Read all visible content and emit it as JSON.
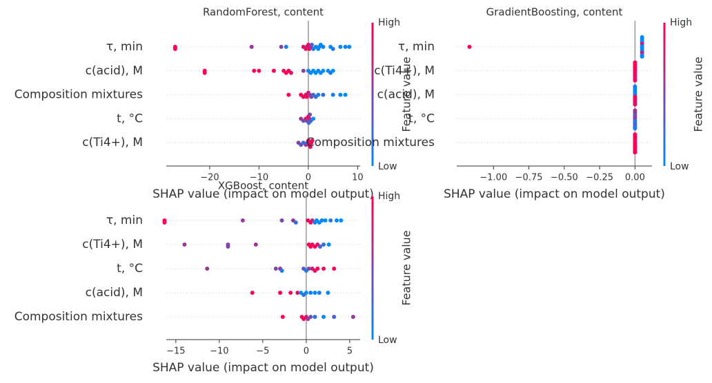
{
  "chart_data": [
    {
      "type": "beeswarm",
      "title": "RandomForest, content",
      "xlabel": "SHAP value (impact on model output)",
      "categories": [
        "τ, min",
        "c(acid), M",
        "Composition mixtures",
        "t, °C",
        "c(Ti4+), M"
      ],
      "shap_values": [
        [
          -27,
          -27,
          -11.5,
          -5.5,
          -4.5,
          -1,
          -0.5,
          -0.3,
          0,
          0.2,
          0.5,
          0.7,
          1,
          1.5,
          2,
          2.2,
          2.5,
          3,
          4.5,
          5,
          6.5,
          7.5,
          8.3
        ],
        [
          -21,
          -21,
          -11,
          -10,
          -7,
          -5,
          -4.5,
          -4,
          -3.5,
          -1,
          0,
          0.5,
          1,
          1.5,
          2,
          2.5,
          3,
          4,
          4.5,
          5
        ],
        [
          -4,
          -1.5,
          -1,
          -0.5,
          -0.3,
          0,
          0.3,
          0.6,
          1,
          1.5,
          2,
          3,
          5,
          6.5,
          7.5
        ],
        [
          -1.5,
          -1,
          -0.5,
          -0.3,
          0,
          0.1,
          0.2,
          0.3,
          0.5,
          1
        ],
        [
          -2,
          -1.5,
          -1,
          -0.5,
          -0.2,
          0,
          0.2,
          0.4,
          0.6,
          0.8
        ]
      ],
      "feature_values": [
        [
          1,
          1,
          0.6,
          0.5,
          0.1,
          0.9,
          0.95,
          0.8,
          0.9,
          0.9,
          0.7,
          0.3,
          0.1,
          0.05,
          0,
          0,
          0,
          0.05,
          0,
          0.1,
          0,
          0.05,
          0.05
        ],
        [
          1,
          1,
          1,
          1,
          1,
          0.9,
          1,
          1,
          0.9,
          0.5,
          0.1,
          0,
          0,
          0,
          0.05,
          0,
          0,
          0,
          0.1,
          0
        ],
        [
          1,
          1,
          0.9,
          1,
          0.95,
          0.8,
          0.6,
          0.5,
          0.3,
          0.2,
          0.1,
          0.2,
          0.1,
          0,
          0
        ],
        [
          0.6,
          0.4,
          0.9,
          0.5,
          1,
          0.2,
          0.8,
          0.5,
          0.3,
          0
        ],
        [
          0.5,
          0.4,
          0.2,
          0.6,
          0.3,
          1,
          1,
          0.9,
          0.95,
          0.9
        ]
      ],
      "xlim": [
        -28.8,
        10.5
      ],
      "xticks": [
        {
          "value": -20,
          "label": "−20"
        },
        {
          "value": -10,
          "label": "−10"
        },
        0,
        10
      ],
      "colorbar": {
        "label": "Feature value",
        "high": "High",
        "low": "Low",
        "colors": [
          "#008bfb",
          "#ff0052"
        ]
      }
    },
    {
      "type": "beeswarm",
      "title": "GradientBoosting, content",
      "xlabel": "SHAP value (impact on model output)",
      "categories": [
        "τ, min",
        "c(Ti4+), M",
        "c(acid), M",
        "t, °C",
        "Composition mixtures"
      ],
      "shap_values": [
        [
          -1.17,
          0.05,
          0.05,
          0.05,
          0.05,
          0.05,
          0.05,
          0.05,
          0.05,
          0.05,
          0.05,
          0.05,
          0.05
        ],
        [
          0,
          0,
          0,
          0,
          0,
          0,
          0,
          0,
          0,
          0
        ],
        [
          0,
          0,
          0,
          0,
          0,
          0,
          0,
          0,
          0,
          0
        ],
        [
          0,
          0,
          0,
          0,
          0,
          0,
          0,
          0,
          0,
          0
        ],
        [
          0,
          0,
          0,
          0,
          0,
          0,
          0,
          0,
          0,
          0
        ]
      ],
      "feature_values": [
        [
          1,
          0,
          0,
          0,
          0.1,
          1,
          1,
          0,
          0,
          0,
          0.9,
          0,
          0
        ],
        [
          1,
          0.9,
          1,
          0.95,
          1,
          0.9,
          1,
          0.85,
          1,
          0.95
        ],
        [
          0,
          1,
          0.1,
          0.9,
          0.05,
          1,
          0,
          0.8,
          0.1,
          0.9
        ],
        [
          0.5,
          0.2,
          0.6,
          0.1,
          0.4,
          0.3,
          0.5,
          0.2,
          0.6,
          0.1
        ],
        [
          1,
          1,
          0.95,
          1,
          0.9,
          1,
          1,
          0.95,
          1,
          1
        ]
      ],
      "xlim": [
        -1.26,
        0.12
      ],
      "xticks": [
        {
          "value": -1,
          "label": "−1.00"
        },
        {
          "value": -0.75,
          "label": "−0.75"
        },
        {
          "value": -0.5,
          "label": "−0.50"
        },
        {
          "value": -0.25,
          "label": "−0.25"
        },
        {
          "value": 0,
          "label": "0.00"
        }
      ],
      "colorbar": {
        "label": "Feature value",
        "high": "High",
        "low": "Low",
        "colors": [
          "#008bfb",
          "#ff0052"
        ]
      }
    },
    {
      "type": "beeswarm",
      "title": "XGBoost, content",
      "xlabel": "SHAP value (impact on model output)",
      "categories": [
        "τ, min",
        "c(Ti4+), M",
        "t, °C",
        "c(acid), M",
        "Composition mixtures"
      ],
      "shap_values": [
        [
          -16.3,
          -16.3,
          -7.3,
          -2.8,
          -1.5,
          -1.2,
          0.2,
          0.5,
          0.7,
          1,
          1.2,
          1.5,
          1.8,
          2.2,
          2.8,
          3.5,
          4
        ],
        [
          -14,
          -9,
          -9,
          -5.8,
          0.3,
          0.5,
          0.7,
          1,
          1.3,
          1.6,
          2,
          2.6
        ],
        [
          -11.4,
          -3.5,
          -3,
          -2.8,
          -0.3,
          0,
          0.3,
          0.7,
          1,
          1.3,
          2,
          3.2
        ],
        [
          -6.2,
          -3,
          -1.8,
          -1,
          -0.6,
          -0.3,
          0,
          0.5,
          1,
          1.5,
          2.5
        ],
        [
          -2.7,
          -0.5,
          -0.3,
          0,
          0.2,
          0.5,
          1,
          2,
          3.2,
          5.4
        ]
      ],
      "feature_values": [
        [
          1,
          1,
          0.6,
          0.5,
          0.6,
          0.2,
          0.9,
          1,
          0.7,
          0.1,
          0,
          0,
          0.05,
          0,
          0.1,
          0,
          0
        ],
        [
          0.6,
          0.5,
          0.5,
          0.6,
          1,
          1,
          0.95,
          1,
          0.9,
          0.3,
          0.2,
          0
        ],
        [
          0.6,
          0.5,
          0.6,
          0.1,
          0.3,
          0.1,
          0.5,
          0.8,
          0.9,
          1,
          0.95,
          1
        ],
        [
          1,
          1,
          1,
          0.9,
          0,
          0.2,
          0,
          0.1,
          0,
          0.1,
          0
        ],
        [
          1,
          1,
          0.95,
          0.9,
          0.6,
          0.4,
          0.2,
          0,
          0.3,
          0.6
        ]
      ],
      "xlim": [
        -16.1,
        6.2
      ],
      "xticks": [
        {
          "value": -15,
          "label": "−15"
        },
        {
          "value": -10,
          "label": "−10"
        },
        {
          "value": -5,
          "label": "−5"
        },
        0,
        5
      ],
      "colorbar": {
        "label": "Feature value",
        "high": "High",
        "low": "Low",
        "colors": [
          "#008bfb",
          "#ff0052"
        ]
      }
    }
  ]
}
